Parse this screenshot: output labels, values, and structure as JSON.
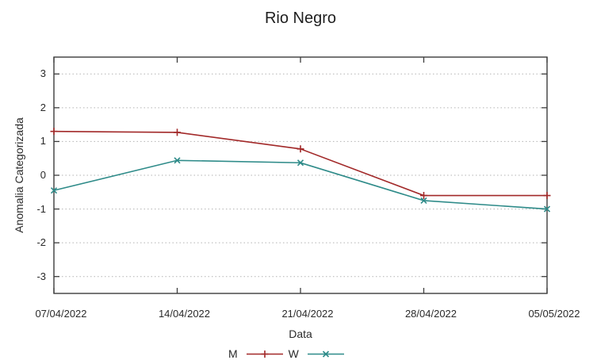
{
  "chart_data": {
    "type": "line",
    "title": "Rio Negro",
    "xlabel": "Data",
    "ylabel": "Anomalia Categorizada",
    "categories": [
      "07/04/2022",
      "14/04/2022",
      "21/04/2022",
      "28/04/2022",
      "05/05/2022"
    ],
    "ylim": [
      -3.5,
      3.5
    ],
    "yticks": [
      -3,
      -2,
      -1,
      0,
      1,
      2,
      3
    ],
    "grid": "horizontal-dotted",
    "legend_position": "below-x-label",
    "series": [
      {
        "name": "M",
        "marker": "plus",
        "color": "#a22929",
        "values": [
          1.3,
          1.27,
          0.78,
          -0.6,
          -0.6
        ]
      },
      {
        "name": "W",
        "marker": "cross",
        "color": "#2e8b89",
        "values": [
          -0.45,
          0.44,
          0.37,
          -0.75,
          -1.0
        ]
      }
    ],
    "colors": {
      "axis": "#3d3d3d",
      "grid": "#b3b3b3",
      "text": "#262626"
    }
  }
}
